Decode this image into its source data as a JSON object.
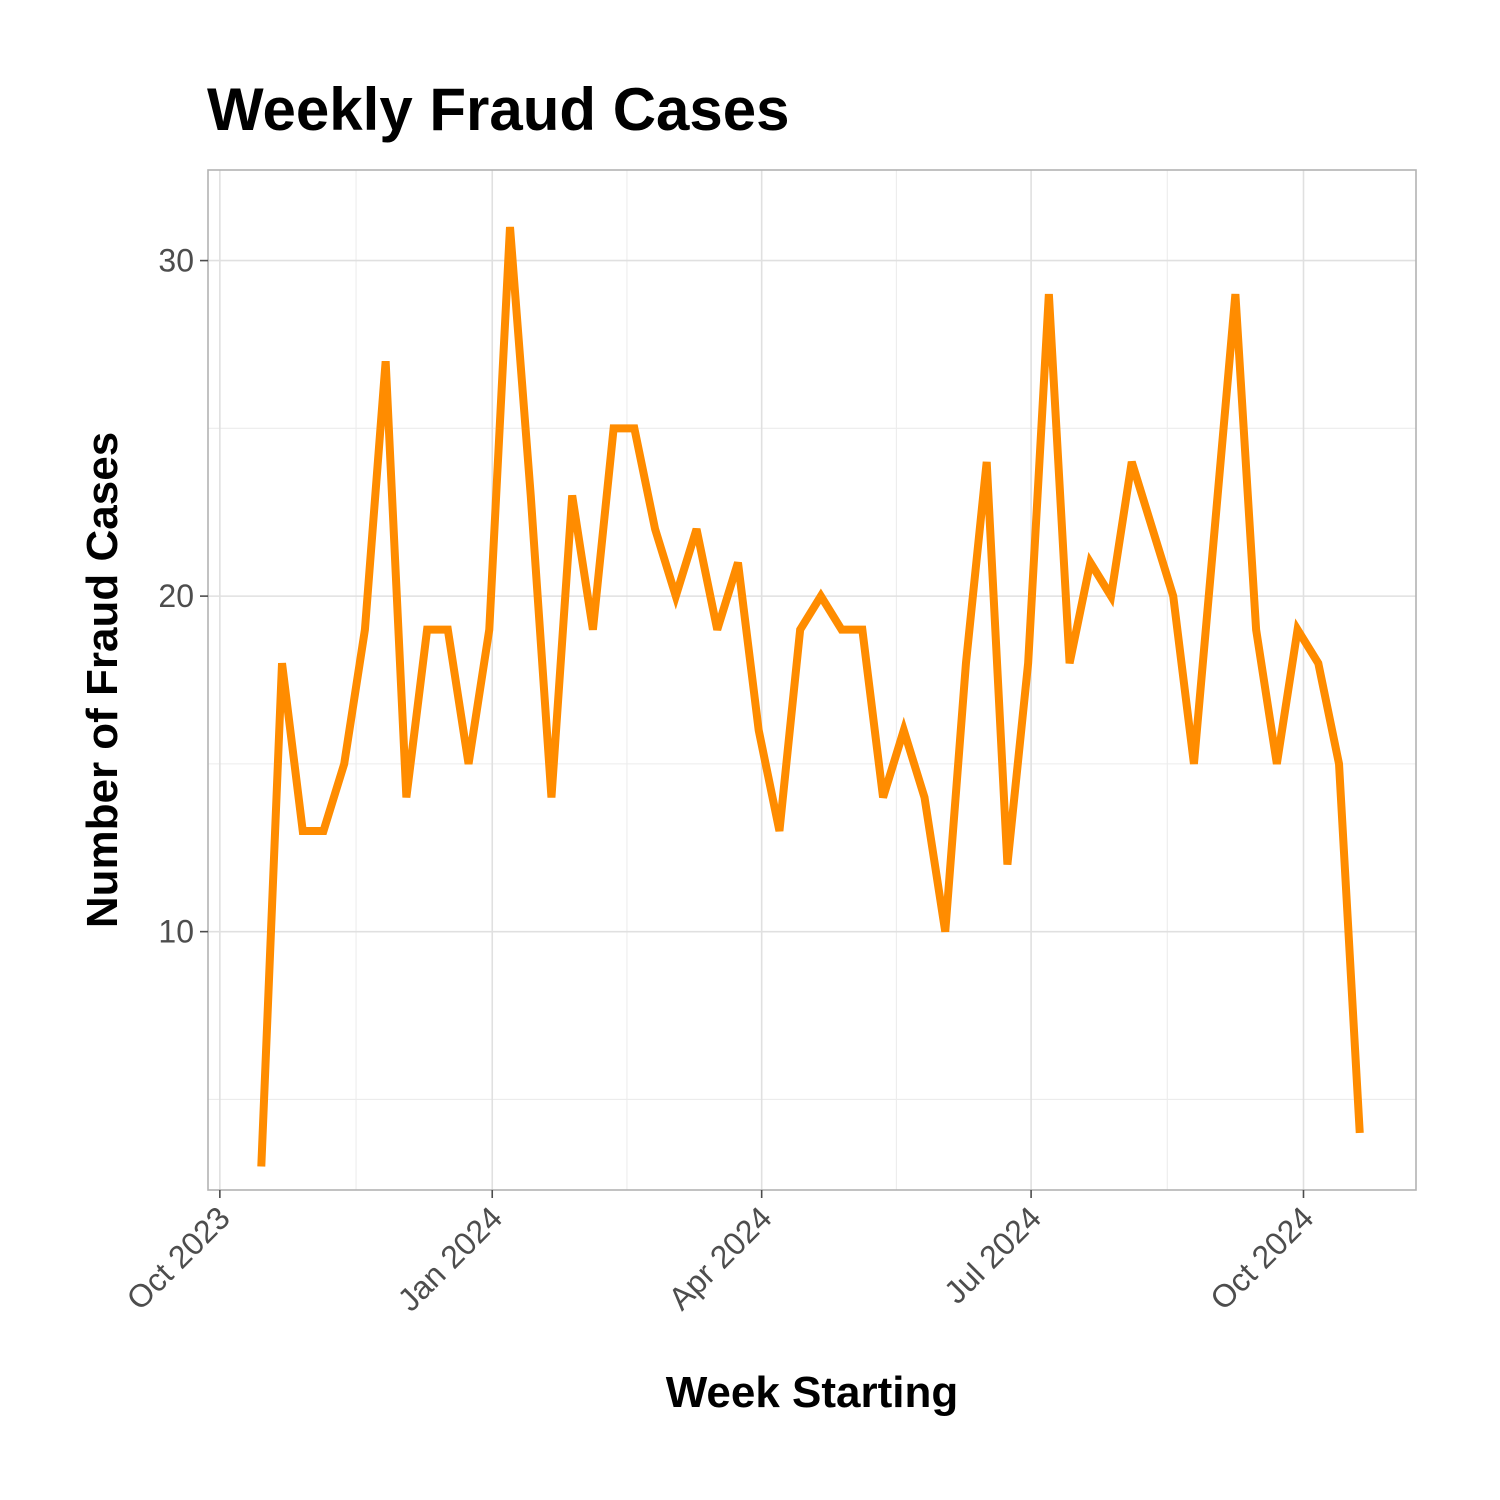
{
  "chart_data": {
    "type": "line",
    "title": "Weekly Fraud Cases",
    "xlabel": "Week Starting",
    "ylabel": "Number of Fraud Cases",
    "x_tick_labels": [
      {
        "label": "Oct 2023",
        "date": "2023-10-01"
      },
      {
        "label": "Jan 2024",
        "date": "2024-01-01"
      },
      {
        "label": "Apr 2024",
        "date": "2024-04-01"
      },
      {
        "label": "Jul 2024",
        "date": "2024-07-01"
      },
      {
        "label": "Oct 2024",
        "date": "2024-10-01"
      }
    ],
    "y_ticks": [
      10,
      20,
      30
    ],
    "xlim": [
      "2023-09-27",
      "2024-11-08"
    ],
    "ylim": [
      2.3,
      32.7
    ],
    "grid": true,
    "color": "#FF8C00",
    "series": [
      {
        "x": [
          "2023-10-15",
          "2023-10-22",
          "2023-10-29",
          "2023-11-05",
          "2023-11-12",
          "2023-11-19",
          "2023-11-26",
          "2023-12-03",
          "2023-12-10",
          "2023-12-17",
          "2023-12-24",
          "2023-12-31",
          "2024-01-07",
          "2024-01-14",
          "2024-01-21",
          "2024-01-28",
          "2024-02-04",
          "2024-02-11",
          "2024-02-18",
          "2024-02-25",
          "2024-03-03",
          "2024-03-10",
          "2024-03-17",
          "2024-03-24",
          "2024-03-31",
          "2024-04-07",
          "2024-04-14",
          "2024-04-21",
          "2024-04-28",
          "2024-05-05",
          "2024-05-12",
          "2024-05-19",
          "2024-05-26",
          "2024-06-02",
          "2024-06-09",
          "2024-06-16",
          "2024-06-23",
          "2024-06-30",
          "2024-07-07",
          "2024-07-14",
          "2024-07-21",
          "2024-07-28",
          "2024-08-04",
          "2024-08-11",
          "2024-08-18",
          "2024-08-25",
          "2024-09-01",
          "2024-09-08",
          "2024-09-15",
          "2024-09-22",
          "2024-09-29",
          "2024-10-06",
          "2024-10-13",
          "2024-10-20"
        ],
        "values": [
          3,
          18,
          13,
          13,
          15,
          19,
          27,
          14,
          19,
          19,
          15,
          19,
          31,
          23,
          14,
          23,
          19,
          25,
          25,
          22,
          20,
          22,
          19,
          21,
          16,
          13,
          19,
          20,
          19,
          19,
          14,
          16,
          14,
          10,
          18,
          24,
          12,
          18,
          29,
          18,
          21,
          20,
          24,
          22,
          20,
          15,
          22,
          29,
          19,
          15,
          19,
          18,
          15,
          4
        ]
      }
    ]
  }
}
